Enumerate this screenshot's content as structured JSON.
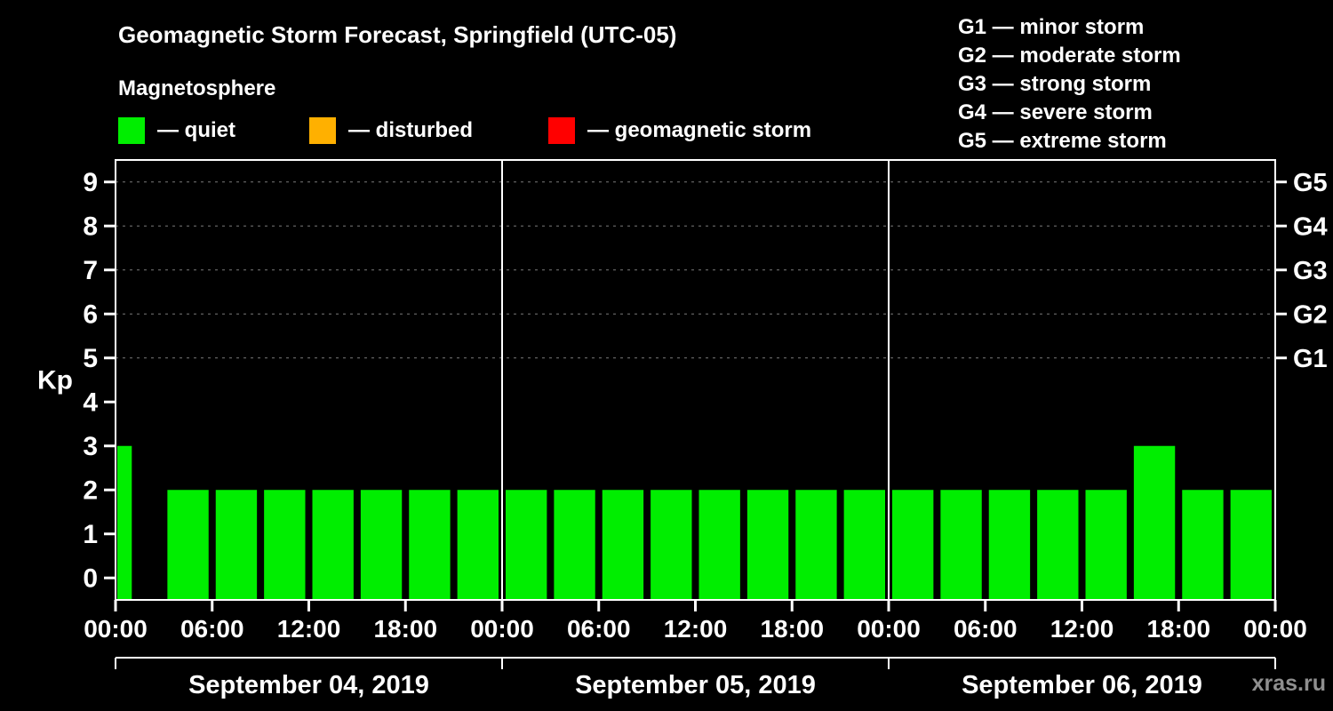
{
  "header": {
    "title": "Geomagnetic Storm Forecast, Springfield (UTC-05)",
    "subtitle": "Magnetosphere"
  },
  "legend": {
    "items": [
      {
        "label": "— quiet",
        "color": "#00ee00"
      },
      {
        "label": "— disturbed",
        "color": "#ffb000"
      },
      {
        "label": "— geomagnetic storm",
        "color": "#ff0000"
      }
    ]
  },
  "g_legend": {
    "items": [
      "G1 — minor storm",
      "G2 — moderate storm",
      "G3 — strong storm",
      "G4 — severe storm",
      "G5 — extreme storm"
    ]
  },
  "watermark": "xras.ru",
  "chart_data": {
    "type": "bar",
    "title": "Geomagnetic Storm Forecast, Springfield (UTC-05)",
    "subtitle": "Magnetosphere",
    "ylabel": "Kp",
    "ylim": [
      -0.5,
      9.5
    ],
    "yticks": [
      0,
      1,
      2,
      3,
      4,
      5,
      6,
      7,
      8,
      9
    ],
    "gridlines": [
      5,
      6,
      7,
      8,
      9
    ],
    "grid_color": "#7a7a7a",
    "right_scale": [
      {
        "kp": 5,
        "label": "G1"
      },
      {
        "kp": 6,
        "label": "G2"
      },
      {
        "kp": 7,
        "label": "G3"
      },
      {
        "kp": 8,
        "label": "G4"
      },
      {
        "kp": 9,
        "label": "G5"
      }
    ],
    "hours_total": 72,
    "bar_interval_hours": 3,
    "first_bar_clipped": true,
    "xtick_step_hours": 6,
    "xticks": [
      "00:00",
      "06:00",
      "12:00",
      "18:00",
      "00:00",
      "06:00",
      "12:00",
      "18:00",
      "00:00",
      "06:00",
      "12:00",
      "18:00",
      "00:00"
    ],
    "days": [
      "September 04, 2019",
      "September 05, 2019",
      "September 06, 2019"
    ],
    "values": [
      3,
      2,
      2,
      2,
      2,
      2,
      2,
      2,
      2,
      2,
      2,
      2,
      2,
      2,
      2,
      2,
      2,
      2,
      2,
      2,
      2,
      3,
      2,
      2
    ],
    "colors": {
      "quiet": "#00ee00",
      "disturbed": "#ffb000",
      "storm": "#ff0000"
    },
    "disturbed_min": 4,
    "storm_min": 5
  }
}
